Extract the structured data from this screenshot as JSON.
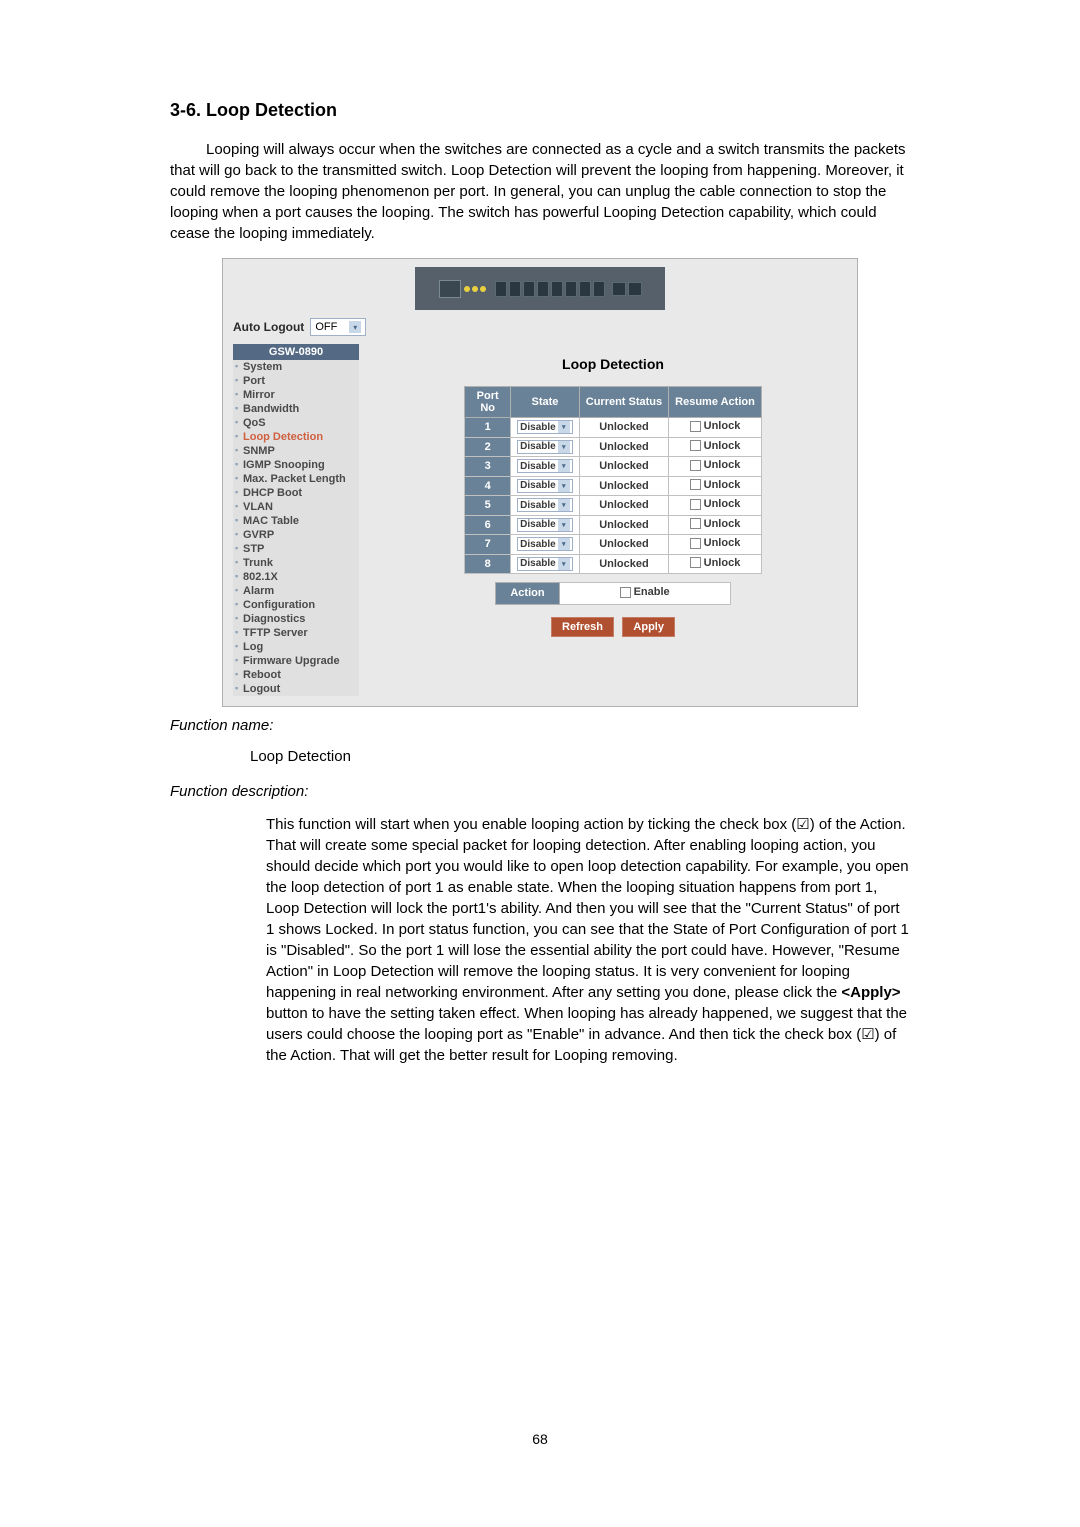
{
  "heading": "3-6. Loop Detection",
  "intro_text": "Looping will always occur when the switches are connected as a cycle and a switch transmits the packets that will go back to the transmitted switch. Loop Detection will prevent the looping from happening. Moreover, it could remove the looping phenomenon per port. In general, you can unplug the cable connection to stop the looping when a port causes the looping. The switch has powerful Looping Detection capability, which could cease the looping immediately.",
  "screenshot": {
    "auto_logout_label": "Auto Logout",
    "auto_logout_value": "OFF",
    "sidebar_header": "GSW-0890",
    "sidebar_items": [
      {
        "label": "System",
        "active": false
      },
      {
        "label": "Port",
        "active": false
      },
      {
        "label": "Mirror",
        "active": false
      },
      {
        "label": "Bandwidth",
        "active": false
      },
      {
        "label": "QoS",
        "active": false
      },
      {
        "label": "Loop Detection",
        "active": true
      },
      {
        "label": "SNMP",
        "active": false
      },
      {
        "label": "IGMP Snooping",
        "active": false
      },
      {
        "label": "Max. Packet Length",
        "active": false
      },
      {
        "label": "DHCP Boot",
        "active": false
      },
      {
        "label": "VLAN",
        "active": false
      },
      {
        "label": "MAC Table",
        "active": false
      },
      {
        "label": "GVRP",
        "active": false
      },
      {
        "label": "STP",
        "active": false
      },
      {
        "label": "Trunk",
        "active": false
      },
      {
        "label": "802.1X",
        "active": false
      },
      {
        "label": "Alarm",
        "active": false
      },
      {
        "label": "Configuration",
        "active": false
      },
      {
        "label": "Diagnostics",
        "active": false
      },
      {
        "label": "TFTP Server",
        "active": false
      },
      {
        "label": "Log",
        "active": false
      },
      {
        "label": "Firmware Upgrade",
        "active": false
      },
      {
        "label": "Reboot",
        "active": false
      },
      {
        "label": "Logout",
        "active": false
      }
    ],
    "panel_title": "Loop Detection",
    "table_headers": {
      "portno": "Port No",
      "state": "State",
      "current_status": "Current Status",
      "resume_action": "Resume Action"
    },
    "table_rows": [
      {
        "port": "1",
        "state": "Disable",
        "status": "Unlocked",
        "resume": "Unlock"
      },
      {
        "port": "2",
        "state": "Disable",
        "status": "Unlocked",
        "resume": "Unlock"
      },
      {
        "port": "3",
        "state": "Disable",
        "status": "Unlocked",
        "resume": "Unlock"
      },
      {
        "port": "4",
        "state": "Disable",
        "status": "Unlocked",
        "resume": "Unlock"
      },
      {
        "port": "5",
        "state": "Disable",
        "status": "Unlocked",
        "resume": "Unlock"
      },
      {
        "port": "6",
        "state": "Disable",
        "status": "Unlocked",
        "resume": "Unlock"
      },
      {
        "port": "7",
        "state": "Disable",
        "status": "Unlocked",
        "resume": "Unlock"
      },
      {
        "port": "8",
        "state": "Disable",
        "status": "Unlocked",
        "resume": "Unlock"
      }
    ],
    "action_label": "Action",
    "action_value": "Enable",
    "refresh_btn": "Refresh",
    "apply_btn": "Apply"
  },
  "fn_name_label": "Function name:",
  "fn_name_value": "Loop Detection",
  "fn_desc_label": "Function description:",
  "fn_desc_prefix": "This function will start when you enable looping action by ticking the check box (☑) of the Action. That will create some special packet for looping detection. After enabling looping action, you should decide which port you would like to open loop detection capability. For example, you open the loop detection of port 1 as enable state. When the looping situation happens from port 1, Loop Detection will lock the port1's ability. And then you will see that the \"Current Status\" of port 1 shows Locked. In port status function, you can see that the State of Port Configuration of port 1 is \"Disabled\". So the port 1 will lose the essential ability the port could have. However, \"Resume Action\" in Loop Detection will remove the looping status. It is very convenient for looping happening in real networking environment. After any setting you done, please click the ",
  "fn_desc_bold": "<Apply>",
  "fn_desc_suffix": " button to have the setting taken effect. When looping has already happened, we suggest that the users could choose the looping port as \"Enable\" in advance. And then tick the check box (☑) of the Action. That will get the better result for Looping removing.",
  "page_number": "68",
  "colors": {
    "page_bg": "#ffffff",
    "screenshot_bg": "#e9e9e9",
    "header_bg": "#546a84",
    "th_bg": "#698298",
    "btn_bg": "#b05030",
    "active_link": "#d06040"
  }
}
